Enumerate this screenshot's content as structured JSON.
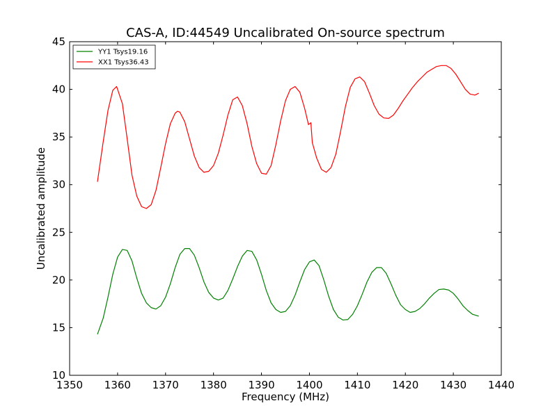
{
  "chart_data": {
    "type": "line",
    "title": "CAS-A, ID:44549 Uncalibrated On-source spectrum",
    "xlabel": "Frequency (MHz)",
    "ylabel": "Uncalibrated amplitude",
    "xlim": [
      1350,
      1440
    ],
    "ylim": [
      10,
      45
    ],
    "xticks": [
      "1350",
      "1360",
      "1370",
      "1380",
      "1390",
      "1400",
      "1410",
      "1420",
      "1430",
      "1440"
    ],
    "yticks": [
      "10",
      "15",
      "20",
      "25",
      "30",
      "35",
      "40",
      "45"
    ],
    "grid": false,
    "legend_position": "top-left",
    "series": [
      {
        "name": "YY1 Tsys19.16",
        "color": "#008000",
        "points": [
          [
            1355.8,
            14.3
          ],
          [
            1357.0,
            16.0
          ],
          [
            1358.0,
            18.2
          ],
          [
            1359.0,
            20.6
          ],
          [
            1360.0,
            22.4
          ],
          [
            1361.0,
            23.2
          ],
          [
            1362.0,
            23.1
          ],
          [
            1363.0,
            22.0
          ],
          [
            1364.0,
            20.2
          ],
          [
            1365.0,
            18.6
          ],
          [
            1366.0,
            17.6
          ],
          [
            1367.0,
            17.1
          ],
          [
            1368.0,
            16.95
          ],
          [
            1369.0,
            17.3
          ],
          [
            1370.0,
            18.2
          ],
          [
            1371.0,
            19.6
          ],
          [
            1372.0,
            21.3
          ],
          [
            1373.0,
            22.7
          ],
          [
            1374.0,
            23.3
          ],
          [
            1375.0,
            23.3
          ],
          [
            1376.0,
            22.6
          ],
          [
            1377.0,
            21.3
          ],
          [
            1378.0,
            19.8
          ],
          [
            1379.0,
            18.7
          ],
          [
            1380.0,
            18.1
          ],
          [
            1381.0,
            17.9
          ],
          [
            1382.0,
            18.1
          ],
          [
            1383.0,
            18.9
          ],
          [
            1384.0,
            20.1
          ],
          [
            1385.0,
            21.4
          ],
          [
            1386.0,
            22.5
          ],
          [
            1387.0,
            23.1
          ],
          [
            1388.0,
            23.0
          ],
          [
            1389.0,
            22.1
          ],
          [
            1390.0,
            20.6
          ],
          [
            1391.0,
            18.9
          ],
          [
            1392.0,
            17.6
          ],
          [
            1393.0,
            16.9
          ],
          [
            1394.0,
            16.6
          ],
          [
            1395.0,
            16.7
          ],
          [
            1396.0,
            17.3
          ],
          [
            1397.0,
            18.4
          ],
          [
            1398.0,
            19.8
          ],
          [
            1399.0,
            21.1
          ],
          [
            1400.0,
            21.9
          ],
          [
            1401.0,
            22.1
          ],
          [
            1402.0,
            21.5
          ],
          [
            1403.0,
            20.0
          ],
          [
            1404.0,
            18.3
          ],
          [
            1405.0,
            16.9
          ],
          [
            1406.0,
            16.1
          ],
          [
            1407.0,
            15.8
          ],
          [
            1408.0,
            15.85
          ],
          [
            1409.0,
            16.4
          ],
          [
            1410.0,
            17.3
          ],
          [
            1411.0,
            18.5
          ],
          [
            1412.0,
            19.8
          ],
          [
            1413.0,
            20.8
          ],
          [
            1414.0,
            21.3
          ],
          [
            1415.0,
            21.3
          ],
          [
            1416.0,
            20.7
          ],
          [
            1417.0,
            19.6
          ],
          [
            1418.0,
            18.4
          ],
          [
            1419.0,
            17.4
          ],
          [
            1420.0,
            16.9
          ],
          [
            1421.0,
            16.6
          ],
          [
            1422.0,
            16.7
          ],
          [
            1423.0,
            17.0
          ],
          [
            1424.0,
            17.5
          ],
          [
            1425.0,
            18.1
          ],
          [
            1426.0,
            18.6
          ],
          [
            1427.0,
            19.0
          ],
          [
            1428.0,
            19.05
          ],
          [
            1429.0,
            18.95
          ],
          [
            1430.0,
            18.6
          ],
          [
            1431.0,
            18.0
          ],
          [
            1432.0,
            17.3
          ],
          [
            1433.0,
            16.8
          ],
          [
            1434.0,
            16.4
          ],
          [
            1435.3,
            16.2
          ]
        ]
      },
      {
        "name": "XX1 Tsys36.43",
        "color": "#ff0000",
        "points": [
          [
            1355.8,
            30.3
          ],
          [
            1357.0,
            34.5
          ],
          [
            1358.0,
            37.8
          ],
          [
            1359.0,
            39.9
          ],
          [
            1359.8,
            40.3
          ],
          [
            1361.0,
            38.5
          ],
          [
            1362.0,
            34.8
          ],
          [
            1363.0,
            31.0
          ],
          [
            1364.0,
            28.8
          ],
          [
            1365.0,
            27.7
          ],
          [
            1366.0,
            27.5
          ],
          [
            1367.0,
            27.9
          ],
          [
            1368.0,
            29.4
          ],
          [
            1369.0,
            31.8
          ],
          [
            1370.0,
            34.3
          ],
          [
            1371.0,
            36.4
          ],
          [
            1372.0,
            37.5
          ],
          [
            1372.5,
            37.7
          ],
          [
            1373.0,
            37.6
          ],
          [
            1374.0,
            36.6
          ],
          [
            1375.0,
            34.8
          ],
          [
            1376.0,
            33.0
          ],
          [
            1377.0,
            31.8
          ],
          [
            1378.0,
            31.3
          ],
          [
            1379.0,
            31.4
          ],
          [
            1380.0,
            32.0
          ],
          [
            1381.0,
            33.3
          ],
          [
            1382.0,
            35.2
          ],
          [
            1383.0,
            37.3
          ],
          [
            1384.0,
            38.9
          ],
          [
            1385.0,
            39.2
          ],
          [
            1386.0,
            38.3
          ],
          [
            1387.0,
            36.4
          ],
          [
            1388.0,
            34.0
          ],
          [
            1389.0,
            32.2
          ],
          [
            1390.0,
            31.2
          ],
          [
            1391.0,
            31.1
          ],
          [
            1392.0,
            32.0
          ],
          [
            1393.0,
            34.2
          ],
          [
            1394.0,
            36.7
          ],
          [
            1395.0,
            38.8
          ],
          [
            1396.0,
            40.0
          ],
          [
            1397.0,
            40.3
          ],
          [
            1398.0,
            39.7
          ],
          [
            1399.0,
            38.0
          ],
          [
            1399.8,
            36.3
          ],
          [
            1400.3,
            36.5
          ],
          [
            1400.6,
            34.4
          ],
          [
            1401.5,
            32.8
          ],
          [
            1402.5,
            31.6
          ],
          [
            1403.5,
            31.3
          ],
          [
            1404.5,
            31.8
          ],
          [
            1405.5,
            33.2
          ],
          [
            1406.5,
            35.6
          ],
          [
            1407.5,
            38.2
          ],
          [
            1408.5,
            40.2
          ],
          [
            1409.5,
            41.1
          ],
          [
            1410.5,
            41.3
          ],
          [
            1411.5,
            40.8
          ],
          [
            1412.5,
            39.6
          ],
          [
            1413.5,
            38.3
          ],
          [
            1414.5,
            37.4
          ],
          [
            1415.5,
            37.0
          ],
          [
            1416.5,
            36.95
          ],
          [
            1417.5,
            37.3
          ],
          [
            1418.5,
            38.0
          ],
          [
            1419.5,
            38.8
          ],
          [
            1420.5,
            39.5
          ],
          [
            1421.5,
            40.2
          ],
          [
            1422.5,
            40.8
          ],
          [
            1423.5,
            41.3
          ],
          [
            1424.5,
            41.8
          ],
          [
            1425.5,
            42.1
          ],
          [
            1426.5,
            42.4
          ],
          [
            1427.5,
            42.5
          ],
          [
            1428.5,
            42.5
          ],
          [
            1429.5,
            42.2
          ],
          [
            1430.5,
            41.6
          ],
          [
            1431.5,
            40.8
          ],
          [
            1432.5,
            40.0
          ],
          [
            1433.5,
            39.5
          ],
          [
            1434.5,
            39.4
          ],
          [
            1435.3,
            39.6
          ]
        ]
      }
    ]
  }
}
